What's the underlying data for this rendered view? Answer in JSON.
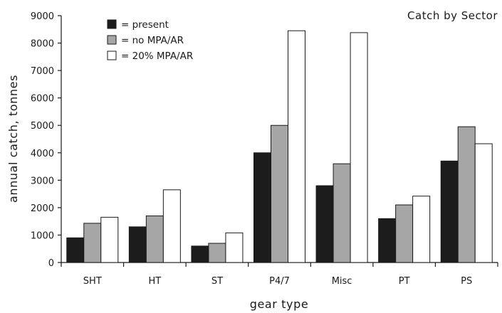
{
  "chart_data": {
    "type": "bar",
    "title": "Catch by Sector",
    "xlabel": "gear type",
    "ylabel": "annual catch, tonnes",
    "ylim": [
      0,
      9000
    ],
    "yticks": [
      0,
      1000,
      2000,
      3000,
      4000,
      5000,
      6000,
      7000,
      8000,
      9000
    ],
    "grid": false,
    "legend_position": "top-left",
    "categories": [
      "SHT",
      "HT",
      "ST",
      "P4/7",
      "Misc",
      "PT",
      "PS"
    ],
    "series": [
      {
        "name": "= present",
        "color": "#1c1c1c",
        "values": [
          900,
          1300,
          600,
          4000,
          2800,
          1600,
          3700
        ]
      },
      {
        "name": "= no MPA/AR",
        "color": "#a6a6a6",
        "values": [
          1430,
          1700,
          700,
          5000,
          3600,
          2100,
          4950
        ]
      },
      {
        "name": "= 20% MPA/AR",
        "color": "#ffffff",
        "values": [
          1650,
          2650,
          1080,
          8450,
          8380,
          2420,
          4330
        ]
      }
    ]
  }
}
